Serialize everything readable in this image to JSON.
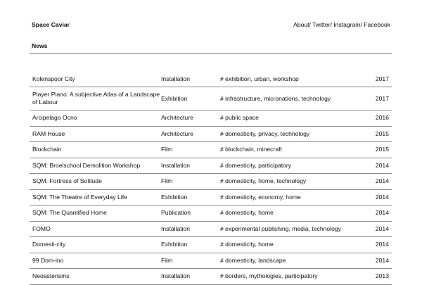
{
  "header": {
    "brand": "Space Caviar",
    "nav": [
      "About/",
      "Twitter/",
      "Instagram/",
      "Facebook"
    ]
  },
  "section": {
    "title": "News"
  },
  "projects": [
    {
      "title": "Kolenspoor City",
      "type": "Installation",
      "tags": "# exhibition, urban, workshop",
      "year": "2017"
    },
    {
      "title": "Player Piano: A subjective Atlas of a Landscape of Labour",
      "type": "Exhibition",
      "tags": "# infrastructure, micronations, technology",
      "year": "2017"
    },
    {
      "title": "Arcipelago Ocno",
      "type": "Architecture",
      "tags": "# public space",
      "year": "2016"
    },
    {
      "title": "RAM House",
      "type": "Architecture",
      "tags": "# domesticity, privacy, technology",
      "year": "2015"
    },
    {
      "title": "Blockchain",
      "type": "Film",
      "tags": "# blockchain, minecraft",
      "year": "2015"
    },
    {
      "title": "SQM: Broelschool Demolition Workshop",
      "type": "Installation",
      "tags": "# domesticity, participatory",
      "year": "2014"
    },
    {
      "title": "SQM: Fortress of Solitude",
      "type": "Film",
      "tags": "# domesticity, home, technology",
      "year": "2014"
    },
    {
      "title": "SQM: The Theatre of Everyday Life",
      "type": "Exhibition",
      "tags": "# domesticity, economy, home",
      "year": "2014"
    },
    {
      "title": "SQM: The Quantified Home",
      "type": "Publication",
      "tags": "# domesticity, home",
      "year": "2014"
    },
    {
      "title": "FOMO",
      "type": "Installation",
      "tags": "# experimental publishing, media, technology",
      "year": "2014"
    },
    {
      "title": "Domesti-city",
      "type": "Exhibition",
      "tags": "# domesticity, home",
      "year": "2014"
    },
    {
      "title": "99 Dom-ino",
      "type": "Film",
      "tags": "# domesticity, landscape",
      "year": "2014"
    },
    {
      "title": "Neoasterisms",
      "type": "Installation",
      "tags": "# borders, mythologies, participatory",
      "year": "2013"
    }
  ]
}
